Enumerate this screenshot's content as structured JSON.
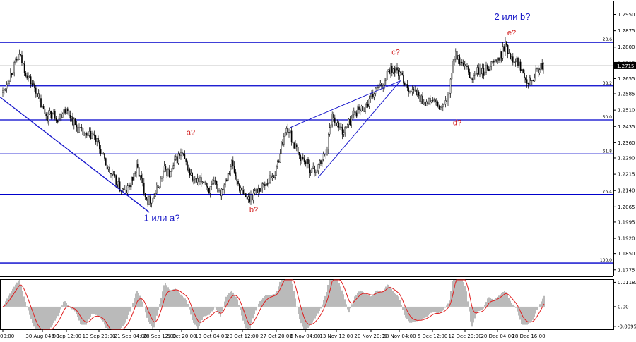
{
  "colors": {
    "background": "#ffffff",
    "candle": "#000000",
    "fib_line": "#0000cc",
    "wave_line": "#1a1acc",
    "wave_label_blue": "#1a1ac8",
    "wave_label_red": "#d21e1e",
    "osc_hist": "#a9a9a9",
    "osc_signal": "#e02020",
    "price_tag_bg": "#000000",
    "price_tag_fg": "#ffffff"
  },
  "chart_data": [
    {
      "type": "candlestick",
      "title": "",
      "ylim": [
        1.1745,
        1.301
      ],
      "y_ticks": [
        "1.2950",
        "1.2875",
        "1.2800",
        "1.2725",
        "1.2655",
        "1.2585",
        "1.2510",
        "1.2435",
        "1.2360",
        "1.2290",
        "1.2215",
        "1.2140",
        "1.2065",
        "1.1995",
        "1.1920",
        "1.1850",
        "1.1775"
      ],
      "y_tick_values": [
        1.295,
        1.2875,
        1.28,
        1.2725,
        1.2655,
        1.2585,
        1.251,
        1.2435,
        1.236,
        1.229,
        1.2215,
        1.214,
        1.2065,
        1.1995,
        1.192,
        1.185,
        1.1775
      ],
      "current_price": "1.2715",
      "current_price_value": 1.2715,
      "x_ticks": [
        "00:00",
        "30 Aug 04:00",
        "6 Sep 12:00",
        "13 Sep 20:00",
        "21 Sep 04:00",
        "28 Sep 12:00",
        "5 Oct 20:00",
        "13 Oct 04:00",
        "20 Oct 12:00",
        "27 Oct 20:00",
        "6 Nov 04:00",
        "13 Nov 12:00",
        "20 Nov 20:00",
        "28 Nov 04:00",
        "5 Dec 12:00",
        "12 Dec 20:00",
        "20 Dec 04:00",
        "28 Dec 16:00"
      ],
      "fib_levels": [
        {
          "label": "23.6",
          "price": 1.28215
        },
        {
          "label": "38.2",
          "price": 1.26215
        },
        {
          "label": "50.0",
          "price": 1.2465
        },
        {
          "label": "61.8",
          "price": 1.23085
        },
        {
          "label": "76.4",
          "price": 1.21225
        },
        {
          "label": "100.0",
          "price": 1.18065
        }
      ],
      "wave_labels": [
        {
          "text": "a?",
          "price": 1.2395,
          "style": "red"
        },
        {
          "text": "1 или a?",
          "price": 1.2,
          "style": "blue"
        },
        {
          "text": "b?",
          "price": 1.204,
          "style": "red"
        },
        {
          "text": "c?",
          "price": 1.2765,
          "style": "red"
        },
        {
          "text": "d?",
          "price": 1.244,
          "style": "red"
        },
        {
          "text": "e?",
          "price": 1.2855,
          "style": "red"
        },
        {
          "text": "2 или b?",
          "price": 1.2925,
          "style": "blue"
        }
      ],
      "price_path": [
        [
          1.259,
          0
        ],
        [
          1.2655,
          1
        ],
        [
          1.271,
          2
        ],
        [
          1.276,
          3
        ],
        [
          1.269,
          4
        ],
        [
          1.264,
          5
        ],
        [
          1.26,
          6
        ],
        [
          1.252,
          7
        ],
        [
          1.248,
          8
        ],
        [
          1.2495,
          9
        ],
        [
          1.247,
          10
        ],
        [
          1.252,
          11
        ],
        [
          1.249,
          12
        ],
        [
          1.244,
          13
        ],
        [
          1.241,
          14
        ],
        [
          1.238,
          15
        ],
        [
          1.24,
          16
        ],
        [
          1.2355,
          17
        ],
        [
          1.229,
          18
        ],
        [
          1.223,
          19
        ],
        [
          1.219,
          20
        ],
        [
          1.215,
          21
        ],
        [
          1.213,
          22
        ],
        [
          1.218,
          23
        ],
        [
          1.225,
          24
        ],
        [
          1.217,
          25
        ],
        [
          1.209,
          26
        ],
        [
          1.211,
          27
        ],
        [
          1.217,
          28
        ],
        [
          1.224,
          29
        ],
        [
          1.221,
          30
        ],
        [
          1.228,
          31
        ],
        [
          1.231,
          32
        ],
        [
          1.225,
          33
        ],
        [
          1.219,
          34
        ],
        [
          1.2175,
          35
        ],
        [
          1.219,
          36
        ],
        [
          1.214,
          37
        ],
        [
          1.217,
          38
        ],
        [
          1.213,
          39
        ],
        [
          1.22,
          40
        ],
        [
          1.227,
          41
        ],
        [
          1.218,
          42
        ],
        [
          1.212,
          43
        ],
        [
          1.21,
          44
        ],
        [
          1.213,
          45
        ],
        [
          1.215,
          46
        ],
        [
          1.217,
          47
        ],
        [
          1.22,
          48
        ],
        [
          1.223,
          49
        ],
        [
          1.236,
          50
        ],
        [
          1.243,
          51
        ],
        [
          1.236,
          52
        ],
        [
          1.23,
          53
        ],
        [
          1.228,
          54
        ],
        [
          1.224,
          55
        ],
        [
          1.223,
          56
        ],
        [
          1.227,
          57
        ],
        [
          1.233,
          58
        ],
        [
          1.249,
          59
        ],
        [
          1.244,
          60
        ],
        [
          1.241,
          61
        ],
        [
          1.245,
          62
        ],
        [
          1.25,
          63
        ],
        [
          1.251,
          64
        ],
        [
          1.253,
          65
        ],
        [
          1.256,
          66
        ],
        [
          1.261,
          67
        ],
        [
          1.262,
          68
        ],
        [
          1.27,
          69
        ],
        [
          1.27,
          70
        ],
        [
          1.268,
          71
        ],
        [
          1.264,
          72
        ],
        [
          1.26,
          73
        ],
        [
          1.259,
          74
        ],
        [
          1.256,
          75
        ],
        [
          1.254,
          76
        ],
        [
          1.256,
          77
        ],
        [
          1.252,
          78
        ],
        [
          1.252,
          79
        ],
        [
          1.259,
          80
        ],
        [
          1.278,
          81
        ],
        [
          1.272,
          82
        ],
        [
          1.27,
          83
        ],
        [
          1.265,
          84
        ],
        [
          1.269,
          85
        ],
        [
          1.268,
          86
        ],
        [
          1.271,
          87
        ],
        [
          1.273,
          88
        ],
        [
          1.275,
          89
        ],
        [
          1.281,
          90
        ],
        [
          1.276,
          91
        ],
        [
          1.274,
          92
        ],
        [
          1.27,
          93
        ],
        [
          1.265,
          94
        ],
        [
          1.266,
          95
        ],
        [
          1.27,
          96
        ],
        [
          1.2715,
          97
        ]
      ],
      "oscillator": {
        "y_ticks": [
          "0.01183",
          "0.00",
          "-0.00959"
        ],
        "y_tick_values": [
          0.01183,
          0.0,
          -0.00959
        ],
        "ylim": [
          -0.011,
          0.013
        ]
      }
    }
  ]
}
